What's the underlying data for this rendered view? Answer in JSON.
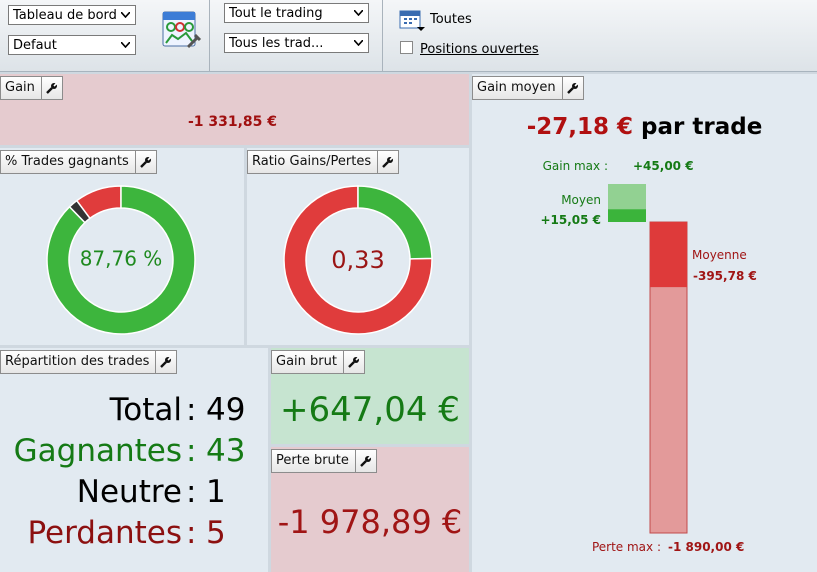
{
  "toolbar": {
    "dashboard_select": "Tableau de bord",
    "layout_select": "Defaut",
    "trading_select": "Tout le trading",
    "trades_select": "Tous les trad...",
    "period": "Toutes",
    "open_positions": "Positions ouvertes"
  },
  "panels": {
    "gain": {
      "title": "Gain",
      "value_label": "-1 331,85 €"
    },
    "win_rate": {
      "title": "% Trades gagnants",
      "label": "87,76 %"
    },
    "ratio": {
      "title": "Ratio Gains/Pertes",
      "label": "0,33"
    },
    "distribution": {
      "title": "Répartition des trades",
      "separator": ":",
      "rows": [
        {
          "label": "Total",
          "value": 49
        },
        {
          "label": "Gagnantes",
          "value": 43
        },
        {
          "label": "Neutre",
          "value": 1
        },
        {
          "label": "Perdantes",
          "value": 5
        }
      ]
    },
    "gross_gain": {
      "title": "Gain brut",
      "value": 647.04,
      "value_label": "+647,04 €"
    },
    "gross_loss": {
      "title": "Perte brute",
      "value": -1978.89,
      "value_label": "-1 978,89 €"
    },
    "avg_gain": {
      "title": "Gain moyen",
      "value_label": "-27,18 €",
      "suffix": "par trade",
      "max_gain_label": "Gain max :",
      "max_gain": 45,
      "max_gain_text": "+45,00 €",
      "avg_win_label": "Moyen",
      "avg_win": 15.05,
      "avg_win_text": "+15,05 €",
      "avg_loss_label": "Moyenne",
      "avg_loss": -395.78,
      "avg_loss_text": "-395,78 €",
      "max_loss_label": "Perte max :",
      "max_loss": -1890,
      "max_loss_text": "-1 890,00 €"
    }
  }
}
